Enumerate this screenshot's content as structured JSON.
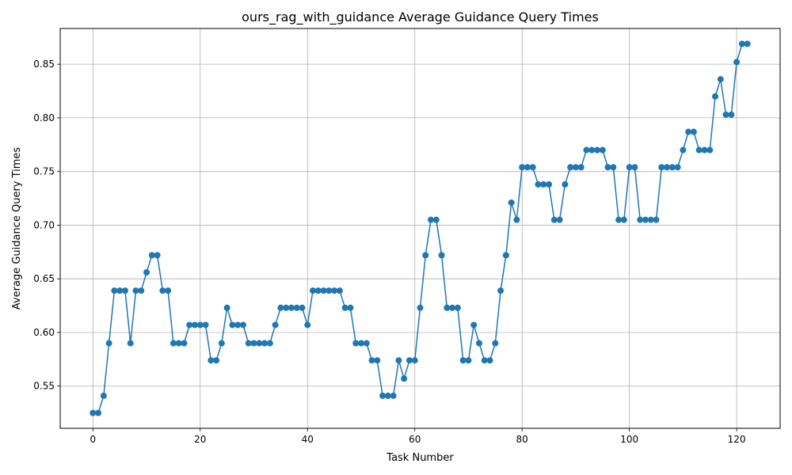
{
  "chart_data": {
    "type": "line",
    "title": "ours_rag_with_guidance Average Guidance Query Times",
    "xlabel": "Task Number",
    "ylabel": "Average Guidance Query Times",
    "xlim": [
      -6.1,
      128.1
    ],
    "ylim": [
      0.5107,
      0.8833
    ],
    "xticks": [
      0,
      20,
      40,
      60,
      80,
      100,
      120
    ],
    "yticks": [
      0.55,
      0.6,
      0.65,
      0.7,
      0.75,
      0.8,
      0.85
    ],
    "ytick_labels": [
      "0.55",
      "0.60",
      "0.65",
      "0.70",
      "0.75",
      "0.80",
      "0.85"
    ],
    "grid": true,
    "marker": "circle",
    "color": "#1f77b4",
    "series": [
      {
        "x": [
          0,
          1,
          2,
          3,
          4,
          5,
          6,
          7,
          8,
          9,
          10,
          11,
          12,
          13,
          14,
          15,
          16,
          17,
          18,
          19,
          20,
          21,
          22,
          23,
          24,
          25,
          26,
          27,
          28,
          29,
          30,
          31,
          32,
          33,
          34,
          35,
          36,
          37,
          38,
          39,
          40,
          41,
          42,
          43,
          44,
          45,
          46,
          47,
          48,
          49,
          50,
          51,
          52,
          53,
          54,
          55,
          56,
          57,
          58,
          59,
          60,
          61,
          62,
          63,
          64,
          65,
          66,
          67,
          68,
          69,
          70,
          71,
          72,
          73,
          74,
          75,
          76,
          77,
          78,
          79,
          80,
          81,
          82,
          83,
          84,
          85,
          86,
          87,
          88,
          89,
          90,
          91,
          92,
          93,
          94,
          95,
          96,
          97,
          98,
          99,
          100,
          101,
          102,
          103,
          104,
          105,
          106,
          107,
          108,
          109,
          110,
          111,
          112,
          113,
          114,
          115,
          116,
          117,
          118,
          119,
          120,
          121,
          122
        ],
        "values": [
          0.525,
          0.525,
          0.541,
          0.59,
          0.639,
          0.639,
          0.639,
          0.59,
          0.639,
          0.639,
          0.656,
          0.672,
          0.672,
          0.639,
          0.639,
          0.59,
          0.59,
          0.59,
          0.607,
          0.607,
          0.607,
          0.607,
          0.574,
          0.574,
          0.59,
          0.623,
          0.607,
          0.607,
          0.607,
          0.59,
          0.59,
          0.59,
          0.59,
          0.59,
          0.607,
          0.623,
          0.623,
          0.623,
          0.623,
          0.623,
          0.607,
          0.639,
          0.639,
          0.639,
          0.639,
          0.639,
          0.639,
          0.623,
          0.623,
          0.59,
          0.59,
          0.59,
          0.574,
          0.574,
          0.541,
          0.541,
          0.541,
          0.574,
          0.557,
          0.574,
          0.574,
          0.623,
          0.672,
          0.705,
          0.705,
          0.672,
          0.623,
          0.623,
          0.623,
          0.574,
          0.574,
          0.607,
          0.59,
          0.574,
          0.574,
          0.59,
          0.639,
          0.672,
          0.721,
          0.705,
          0.754,
          0.754,
          0.754,
          0.738,
          0.738,
          0.738,
          0.705,
          0.705,
          0.738,
          0.754,
          0.754,
          0.754,
          0.77,
          0.77,
          0.77,
          0.77,
          0.754,
          0.754,
          0.705,
          0.705,
          0.754,
          0.754,
          0.705,
          0.705,
          0.705,
          0.705,
          0.754,
          0.754,
          0.754,
          0.754,
          0.77,
          0.787,
          0.787,
          0.77,
          0.77,
          0.77,
          0.82,
          0.836,
          0.803,
          0.803,
          0.852,
          0.869,
          0.869
        ]
      }
    ]
  }
}
